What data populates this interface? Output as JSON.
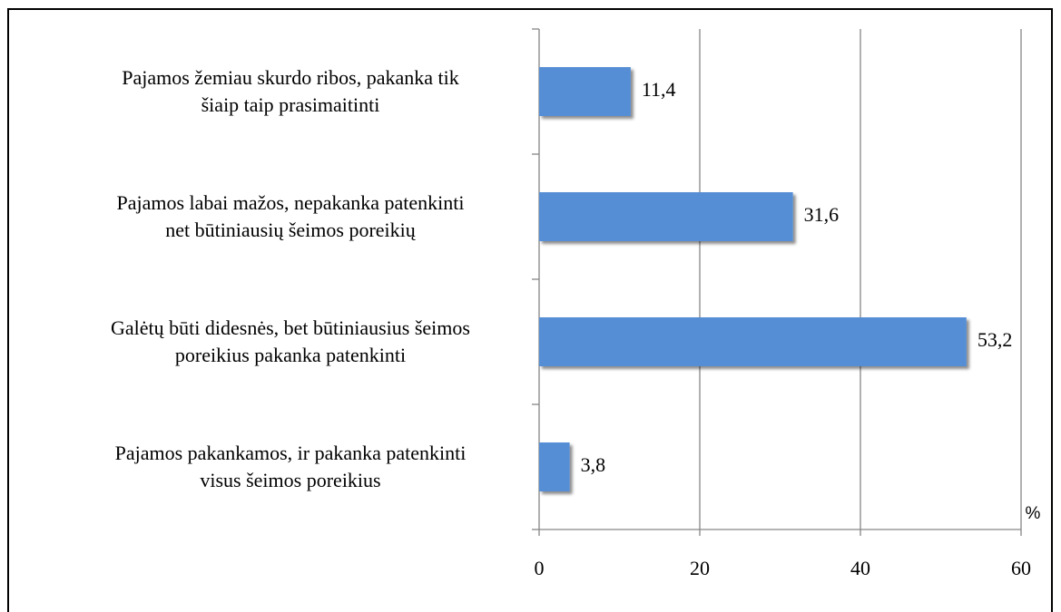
{
  "chart_data": {
    "type": "bar",
    "orientation": "horizontal",
    "categories": [
      "Pajamos žemiau skurdo ribos, pakanka tik\nšiaip taip prasimaitinti",
      "Pajamos labai mažos, nepakanka patenkinti\nnet būtiniausių šeimos poreikių",
      "Galėtų būti didesnės, bet būtiniausius šeimos\nporeikius pakanka patenkinti",
      "Pajamos pakankamos, ir pakanka patenkinti\nvisus šeimos poreikius"
    ],
    "values": [
      11.4,
      31.6,
      53.2,
      3.8
    ],
    "value_labels": [
      "11,4",
      "31,6",
      "53,2",
      "3,8"
    ],
    "color": "#558ed5",
    "x_label": "%",
    "xlim": [
      0,
      60
    ],
    "xticks": [
      0,
      20,
      40,
      60
    ],
    "grid": true
  }
}
